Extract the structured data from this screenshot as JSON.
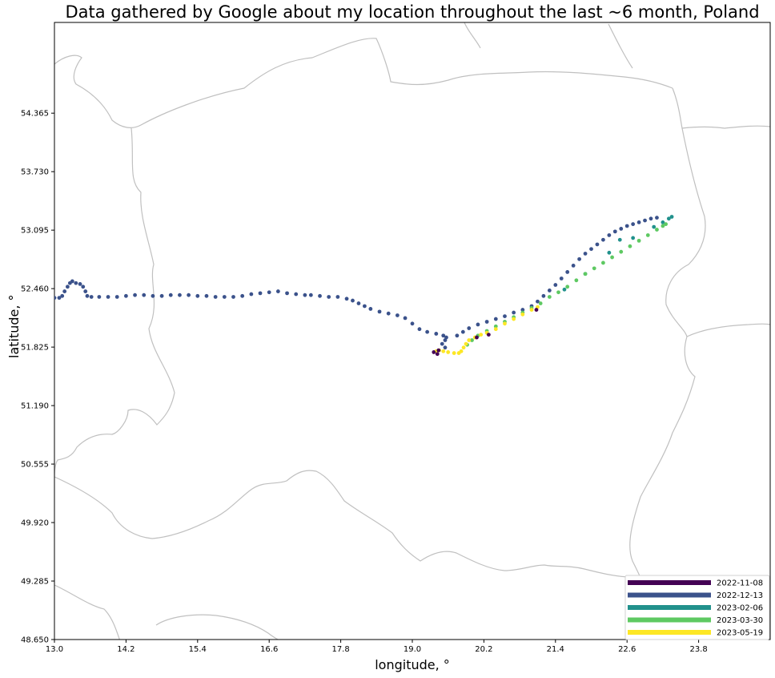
{
  "chart_data": {
    "type": "scatter",
    "title": "Data gathered by Google about my location throughout the last ~6 month, Poland",
    "xlabel": "longitude, °",
    "ylabel": "latitude, °",
    "xlim": [
      13.0,
      25.0
    ],
    "ylim": [
      48.65,
      55.35
    ],
    "x_ticks": [
      "13.0",
      "14.2",
      "15.4",
      "16.6",
      "17.8",
      "19.0",
      "20.2",
      "21.4",
      "22.6",
      "23.8"
    ],
    "y_ticks": [
      "48.650",
      "49.285",
      "49.920",
      "50.555",
      "51.190",
      "51.825",
      "52.460",
      "53.095",
      "53.730",
      "54.365"
    ],
    "grid": false,
    "legend_position": "lower-right",
    "legend": [
      {
        "label": "2022-11-08",
        "color": "#440154"
      },
      {
        "label": "2022-12-13",
        "color": "#3b528b"
      },
      {
        "label": "2023-02-06",
        "color": "#21918c"
      },
      {
        "label": "2023-03-30",
        "color": "#5ec962"
      },
      {
        "label": "2023-05-19",
        "color": "#fde725"
      }
    ],
    "series": [
      {
        "color": "#3b528b",
        "points": [
          [
            13.0,
            52.36
          ],
          [
            13.08,
            52.36
          ],
          [
            13.13,
            52.38
          ],
          [
            13.17,
            52.43
          ],
          [
            13.22,
            52.48
          ],
          [
            13.26,
            52.52
          ],
          [
            13.3,
            52.54
          ],
          [
            13.36,
            52.52
          ],
          [
            13.43,
            52.51
          ],
          [
            13.48,
            52.48
          ],
          [
            13.52,
            52.43
          ],
          [
            13.55,
            52.38
          ],
          [
            13.62,
            52.37
          ],
          [
            13.75,
            52.37
          ],
          [
            13.9,
            52.37
          ],
          [
            14.05,
            52.37
          ],
          [
            14.2,
            52.38
          ],
          [
            14.35,
            52.39
          ],
          [
            14.5,
            52.39
          ],
          [
            14.65,
            52.38
          ],
          [
            14.8,
            52.38
          ],
          [
            14.95,
            52.39
          ],
          [
            15.1,
            52.39
          ],
          [
            15.25,
            52.39
          ],
          [
            15.4,
            52.38
          ],
          [
            15.55,
            52.38
          ],
          [
            15.7,
            52.37
          ],
          [
            15.85,
            52.37
          ],
          [
            16.0,
            52.37
          ],
          [
            16.15,
            52.38
          ],
          [
            16.3,
            52.4
          ],
          [
            16.45,
            52.41
          ],
          [
            16.6,
            52.42
          ],
          [
            16.75,
            52.43
          ],
          [
            16.9,
            52.41
          ],
          [
            17.05,
            52.4
          ],
          [
            17.2,
            52.39
          ],
          [
            17.3,
            52.39
          ],
          [
            17.45,
            52.38
          ],
          [
            17.6,
            52.37
          ],
          [
            17.75,
            52.37
          ],
          [
            17.9,
            52.35
          ],
          [
            18.0,
            52.33
          ],
          [
            18.1,
            52.3
          ],
          [
            18.2,
            52.27
          ],
          [
            18.3,
            52.24
          ],
          [
            18.45,
            52.21
          ],
          [
            18.6,
            52.19
          ],
          [
            18.75,
            52.17
          ],
          [
            18.88,
            52.14
          ],
          [
            19.0,
            52.08
          ],
          [
            19.12,
            52.02
          ],
          [
            19.25,
            51.99
          ],
          [
            19.4,
            51.97
          ],
          [
            19.52,
            51.95
          ],
          [
            19.57,
            51.93
          ],
          [
            19.55,
            51.9
          ],
          [
            19.5,
            51.86
          ],
          [
            19.55,
            51.82
          ],
          [
            19.75,
            51.95
          ],
          [
            19.85,
            51.99
          ],
          [
            19.95,
            52.03
          ],
          [
            20.1,
            52.07
          ],
          [
            20.25,
            52.1
          ],
          [
            20.4,
            52.13
          ],
          [
            20.55,
            52.16
          ],
          [
            20.7,
            52.2
          ],
          [
            20.85,
            52.23
          ],
          [
            21.0,
            52.27
          ],
          [
            21.1,
            52.32
          ],
          [
            21.2,
            52.38
          ],
          [
            21.3,
            52.44
          ],
          [
            21.4,
            52.5
          ],
          [
            21.5,
            52.57
          ],
          [
            21.6,
            52.64
          ],
          [
            21.7,
            52.71
          ],
          [
            21.8,
            52.78
          ],
          [
            21.9,
            52.84
          ],
          [
            22.0,
            52.89
          ],
          [
            22.1,
            52.94
          ],
          [
            22.2,
            52.99
          ],
          [
            22.3,
            53.04
          ],
          [
            22.4,
            53.08
          ],
          [
            22.5,
            53.11
          ],
          [
            22.6,
            53.14
          ],
          [
            22.7,
            53.16
          ],
          [
            22.8,
            53.18
          ],
          [
            22.9,
            53.2
          ],
          [
            23.0,
            53.22
          ],
          [
            23.1,
            53.23
          ]
        ]
      },
      {
        "color": "#21918c",
        "points": [
          [
            21.9,
            52.62
          ],
          [
            22.3,
            52.85
          ],
          [
            22.7,
            53.01
          ],
          [
            23.05,
            53.13
          ],
          [
            23.2,
            53.18
          ],
          [
            23.3,
            53.22
          ],
          [
            23.35,
            53.24
          ],
          [
            22.48,
            52.99
          ],
          [
            21.55,
            52.45
          ]
        ]
      },
      {
        "color": "#5ec962",
        "points": [
          [
            19.92,
            51.85
          ],
          [
            20.0,
            51.9
          ],
          [
            20.1,
            51.95
          ],
          [
            20.25,
            52.0
          ],
          [
            20.4,
            52.05
          ],
          [
            20.55,
            52.1
          ],
          [
            20.7,
            52.15
          ],
          [
            20.85,
            52.2
          ],
          [
            21.0,
            52.25
          ],
          [
            21.15,
            52.3
          ],
          [
            21.3,
            52.37
          ],
          [
            21.45,
            52.42
          ],
          [
            21.6,
            52.48
          ],
          [
            21.75,
            52.55
          ],
          [
            21.9,
            52.62
          ],
          [
            22.05,
            52.68
          ],
          [
            22.2,
            52.74
          ],
          [
            22.35,
            52.8
          ],
          [
            22.5,
            52.86
          ],
          [
            22.65,
            52.92
          ],
          [
            22.8,
            52.98
          ],
          [
            22.95,
            53.04
          ],
          [
            23.1,
            53.1
          ],
          [
            23.2,
            53.14
          ],
          [
            23.25,
            53.16
          ]
        ]
      },
      {
        "color": "#fde725",
        "points": [
          [
            19.4,
            51.78
          ],
          [
            19.45,
            51.79
          ],
          [
            19.52,
            51.78
          ],
          [
            19.6,
            51.77
          ],
          [
            19.7,
            51.76
          ],
          [
            19.78,
            51.76
          ],
          [
            19.82,
            51.78
          ],
          [
            19.86,
            51.82
          ],
          [
            19.9,
            51.86
          ],
          [
            19.95,
            51.9
          ],
          [
            20.05,
            51.93
          ],
          [
            20.15,
            51.96
          ],
          [
            20.25,
            51.98
          ],
          [
            20.4,
            52.02
          ],
          [
            20.55,
            52.08
          ],
          [
            20.7,
            52.13
          ],
          [
            20.85,
            52.18
          ],
          [
            21.0,
            52.23
          ],
          [
            21.1,
            52.26
          ]
        ]
      },
      {
        "color": "#440154",
        "points": [
          [
            19.36,
            51.77
          ],
          [
            19.42,
            51.75
          ],
          [
            19.44,
            51.79
          ],
          [
            21.08,
            52.23
          ],
          [
            20.08,
            51.93
          ],
          [
            20.28,
            51.96
          ]
        ]
      }
    ]
  }
}
